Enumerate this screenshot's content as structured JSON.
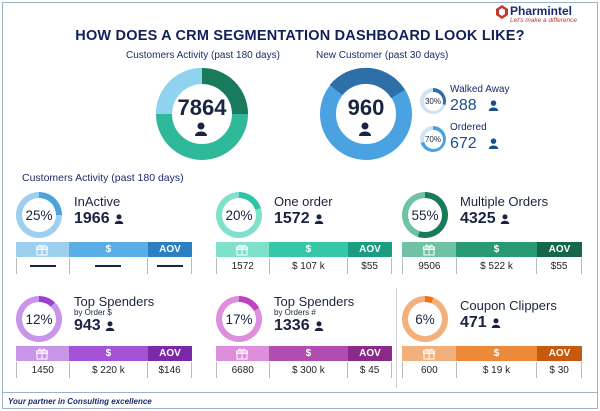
{
  "title": "HOW DOES A CRM SEGMENTATION DASHBOARD LOOK LIKE?",
  "brand": {
    "name": "Pharmintel",
    "tagline": "Let's make a difference"
  },
  "top": {
    "activity_label": "Customers Activity (past 180 days)",
    "activity_value": "7864",
    "new_label": "New Customer (past 30 days)",
    "new_value": "960",
    "walked_away": {
      "label": "Walked Away",
      "pct": "30%",
      "value": "288"
    },
    "ordered": {
      "label": "Ordered",
      "pct": "70%",
      "value": "672"
    }
  },
  "section_label": "Customers Activity (past 180 days)",
  "bar_headers": {
    "gift": "gift-icon",
    "dollar": "$",
    "aov": "AOV"
  },
  "cards": [
    {
      "name": "InActive",
      "sub": "",
      "pct": "25%",
      "value": "1966",
      "color": "#4da3dc",
      "light": "#9dd0f0",
      "mid": "#5aaee6",
      "dark": "#2c7fc0",
      "gift": "",
      "dollar": "",
      "aov": "",
      "empty": true
    },
    {
      "name": "One order",
      "sub": "",
      "pct": "20%",
      "value": "1572",
      "color": "#2ec4a5",
      "light": "#7fe0cc",
      "mid": "#36c7a8",
      "dark": "#1c9c83",
      "gift": "1572",
      "dollar": "$ 107 k",
      "aov": "$55"
    },
    {
      "name": "Multiple Orders",
      "sub": "",
      "pct": "55%",
      "value": "4325",
      "color": "#1a7a5c",
      "light": "#6fc2a3",
      "mid": "#2a9a75",
      "dark": "#16664d",
      "gift": "9506",
      "dollar": "$ 522 k",
      "aov": "$55"
    },
    {
      "name": "Top Spenders",
      "sub": "by Order $",
      "pct": "12%",
      "value": "943",
      "color": "#9b3fd0",
      "light": "#c995e8",
      "mid": "#a652d6",
      "dark": "#7a2aa8",
      "gift": "1450",
      "dollar": "$ 220 k",
      "aov": "$146"
    },
    {
      "name": "Top Spenders",
      "sub": "by Orders #",
      "pct": "17%",
      "value": "1336",
      "color": "#c042c0",
      "light": "#dd8fdd",
      "mid": "#b14db1",
      "dark": "#8a2a8a",
      "gift": "6680",
      "dollar": "$ 300 k",
      "aov": "$ 45"
    },
    {
      "name": "Coupon Clippers",
      "sub": "",
      "pct": "6%",
      "value": "471",
      "color": "#e8741c",
      "light": "#f3b07a",
      "mid": "#ec8a3a",
      "dark": "#c75a0e",
      "gift": "600",
      "dollar": "$ 19 k",
      "aov": "$ 30"
    }
  ],
  "footer": "Your partner in Consulting excellence"
}
